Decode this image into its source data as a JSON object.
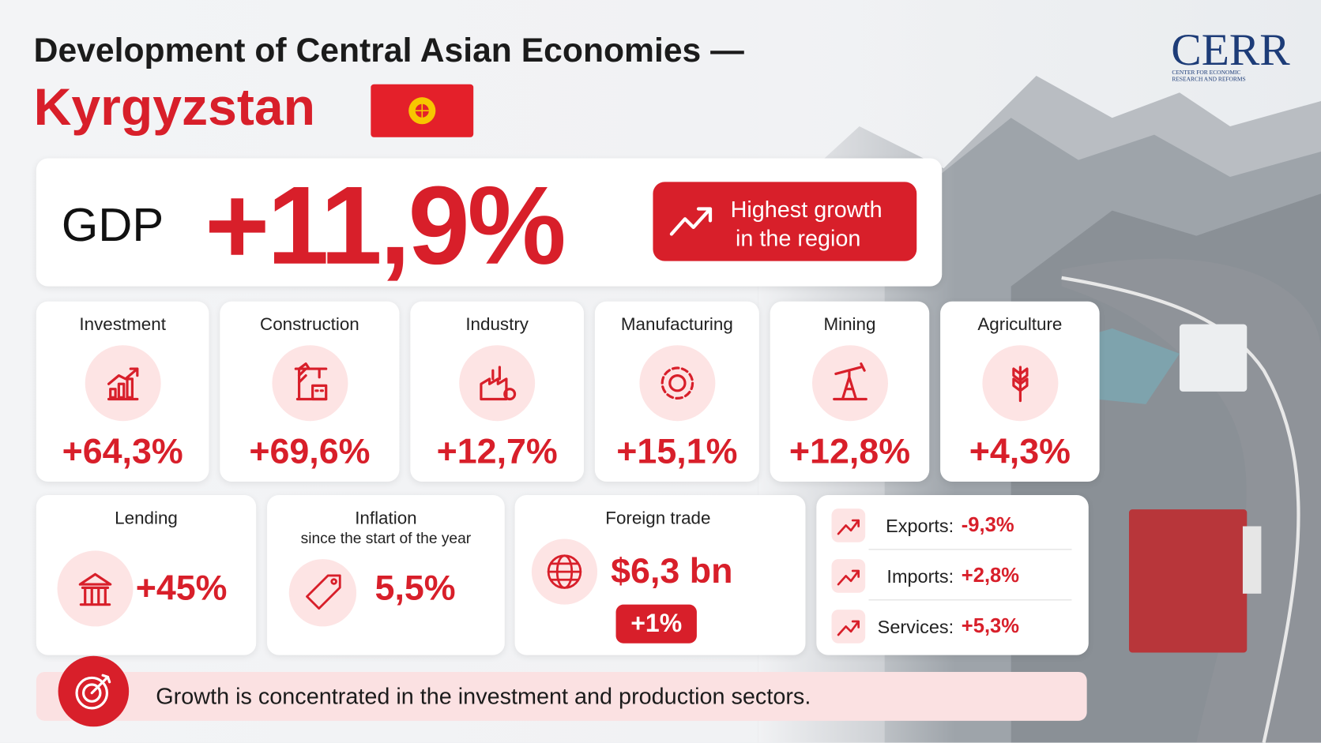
{
  "header": {
    "title": "Development of Central Asian Economies —",
    "country": "Kyrgyzstan",
    "logo": {
      "name": "CERR",
      "subtitle": [
        "CENTER FOR ECONOMIC",
        "RESEARCH AND REFORMS"
      ]
    }
  },
  "gdp": {
    "label": "GDP",
    "value": "+11,9%",
    "badge": [
      "Highest growth",
      "in the region"
    ]
  },
  "sectors": [
    {
      "name": "Investment",
      "value": "+64,3%"
    },
    {
      "name": "Construction",
      "value": "+69,6%"
    },
    {
      "name": "Industry",
      "value": "+12,7%"
    },
    {
      "name": "Manufacturing",
      "value": "+15,1%"
    },
    {
      "name": "Mining",
      "value": "+12,8%"
    },
    {
      "name": "Agriculture",
      "value": "+4,3%"
    }
  ],
  "lending": {
    "label": "Lending",
    "value": "+45%"
  },
  "inflation": {
    "label": "Inflation",
    "sublabel": "since the start of the year",
    "value": "5,5%"
  },
  "foreign_trade": {
    "label": "Foreign trade",
    "value": "$6,3 bn",
    "change": "+1%"
  },
  "trade_breakdown": [
    {
      "label": "Exports:",
      "value": "-9,3%"
    },
    {
      "label": "Imports:",
      "value": "+2,8%"
    },
    {
      "label": "Services:",
      "value": "+5,3%"
    }
  ],
  "footer": "Growth is concentrated in the investment and production sectors."
}
